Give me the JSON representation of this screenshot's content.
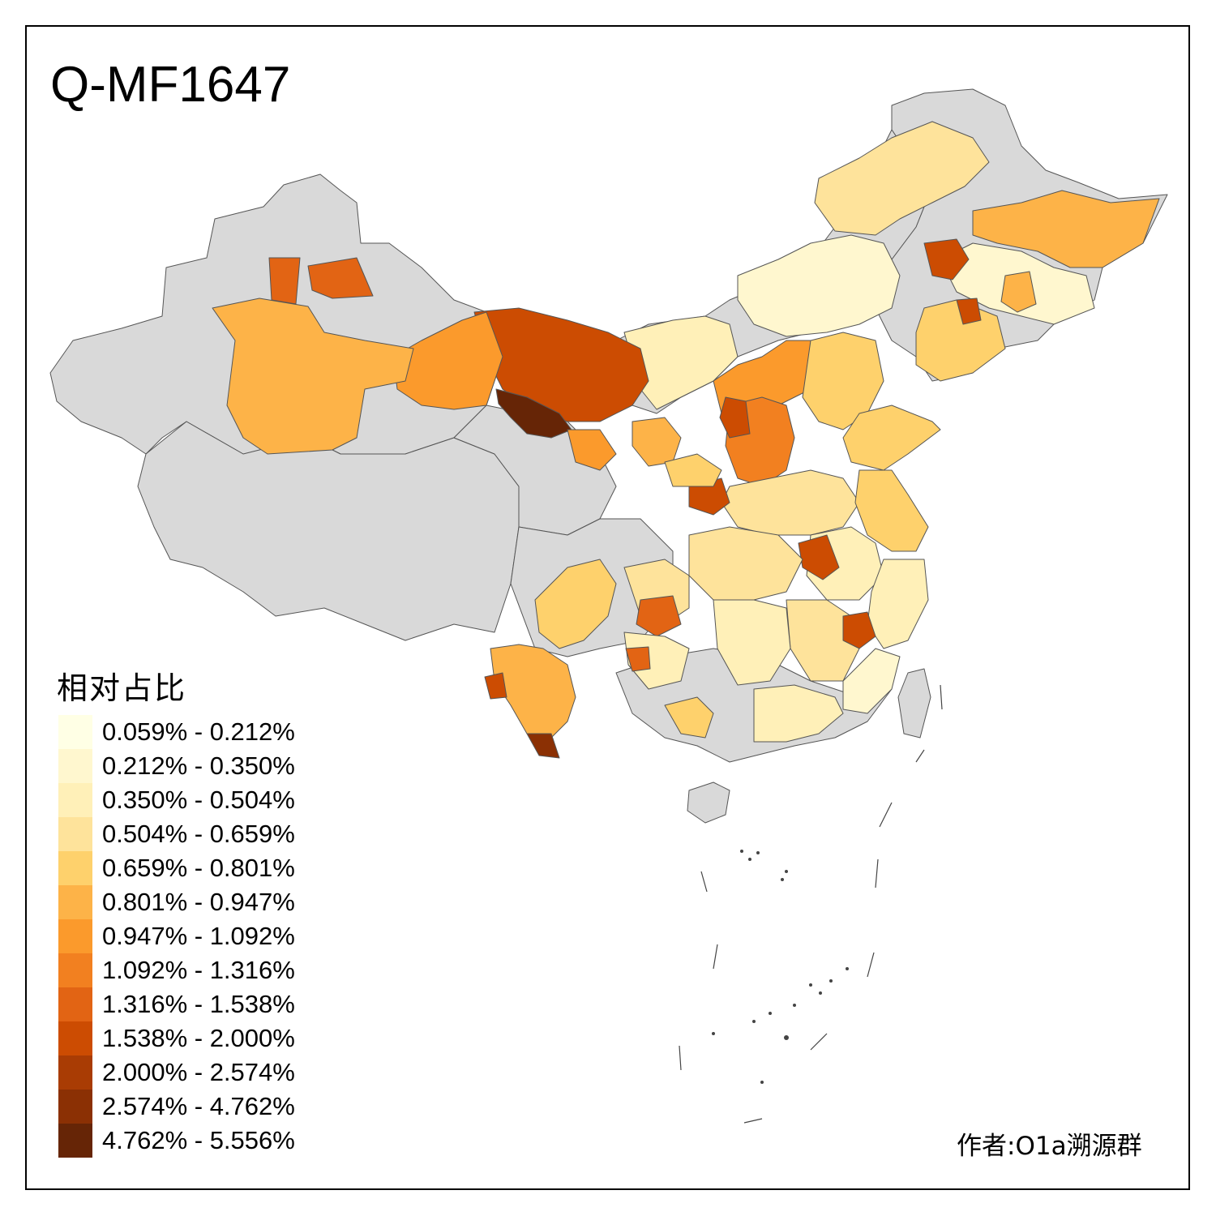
{
  "title": "Q-MF1647",
  "legend": {
    "title": "相对占比",
    "items": [
      {
        "label": "0.059% - 0.212%",
        "color": "#ffffe5"
      },
      {
        "label": "0.212% - 0.350%",
        "color": "#fff7cf"
      },
      {
        "label": "0.350% - 0.504%",
        "color": "#fff0b8"
      },
      {
        "label": "0.504% - 0.659%",
        "color": "#fee39b"
      },
      {
        "label": "0.659% - 0.801%",
        "color": "#fed16c"
      },
      {
        "label": "0.801% - 0.947%",
        "color": "#fdb348"
      },
      {
        "label": "0.947% - 1.092%",
        "color": "#fb9a2c"
      },
      {
        "label": "1.092% - 1.316%",
        "color": "#f28020"
      },
      {
        "label": "1.316% - 1.538%",
        "color": "#e26414"
      },
      {
        "label": "1.538% - 2.000%",
        "color": "#cc4c02"
      },
      {
        "label": "2.000% - 2.574%",
        "color": "#a93c04"
      },
      {
        "label": "2.574% - 4.762%",
        "color": "#8b3004"
      },
      {
        "label": "4.762% - 5.556%",
        "color": "#662506"
      }
    ]
  },
  "credit": "作者:O1a溯源群",
  "no_data_color": "#d9d9d9"
}
